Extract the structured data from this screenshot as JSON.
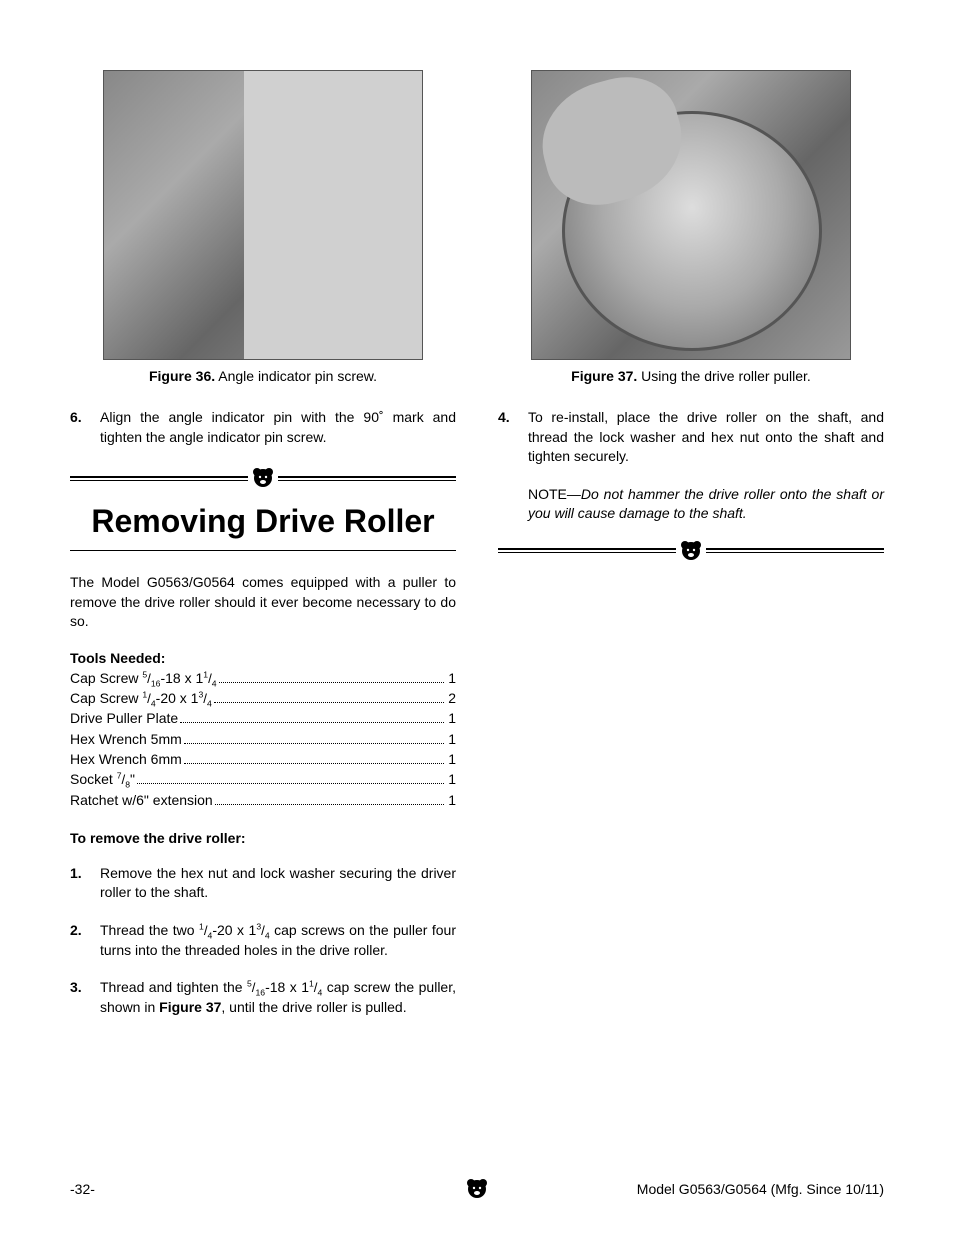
{
  "page": {
    "number": "-32-",
    "model_line": "Model G0563/G0564 (Mfg. Since 10/11)"
  },
  "left": {
    "fig36": {
      "label": "Figure 36.",
      "caption": " Angle indicator pin screw."
    },
    "step6": {
      "num": "6.",
      "text": "Align the angle indicator pin with the 90˚ mark and tighten the angle indicator pin screw."
    },
    "section_title": "Removing Drive Roller",
    "intro": "The Model G0563/G0564 comes equipped with a puller to remove the drive roller should it ever become necessary to do so.",
    "tools_head": "Tools Needed:",
    "tools": [
      {
        "label_html": "Cap Screw <span class='frac'><sup>5</sup>/<sub>16</sub></span>-18 x 1<span class='frac'><sup>1</sup>/<sub>4</sub></span>",
        "qty": "1"
      },
      {
        "label_html": "Cap Screw <span class='frac'><sup>1</sup>/<sub>4</sub></span>-20 x 1<span class='frac'><sup>3</sup>/<sub>4</sub></span>",
        "qty": "2"
      },
      {
        "label_html": "Drive Puller Plate",
        "qty": "1"
      },
      {
        "label_html": "Hex Wrench 5mm",
        "qty": "1"
      },
      {
        "label_html": "Hex Wrench 6mm",
        "qty": "1"
      },
      {
        "label_html": "Socket <span class='frac'><sup>7</sup>/<sub>8</sub></span>\"",
        "qty": "1"
      },
      {
        "label_html": "Ratchet w/6\" extension",
        "qty": "1"
      }
    ],
    "remove_head": "To remove the drive roller:",
    "steps": [
      {
        "num": "1.",
        "html": "Remove the hex nut and lock washer securing the driver roller to the shaft."
      },
      {
        "num": "2.",
        "html": "Thread the two <span class='frac'><sup>1</sup>/<sub>4</sub></span>-20 x 1<span class='frac'><sup>3</sup>/<sub>4</sub></span> cap screws on the puller four turns into the threaded holes in the drive roller."
      },
      {
        "num": "3.",
        "html": "Thread and tighten the <span class='frac'><sup>5</sup>/<sub>16</sub></span>-18 x 1<span class='frac'><sup>1</sup>/<sub>4</sub></span> cap screw  the puller, shown in <b>Figure 37</b>, until the drive roller is pulled."
      }
    ]
  },
  "right": {
    "fig37": {
      "label": "Figure 37.",
      "caption": " Using the drive roller puller."
    },
    "step4": {
      "num": "4.",
      "text": "To re-install, place the drive roller on the shaft, and thread the lock washer and hex nut onto the shaft and tighten securely."
    },
    "note_label": "NOTE—",
    "note_text": "Do not hammer the drive roller onto the shaft or you will cause damage to the shaft."
  },
  "colors": {
    "text": "#000000",
    "bg": "#ffffff"
  }
}
